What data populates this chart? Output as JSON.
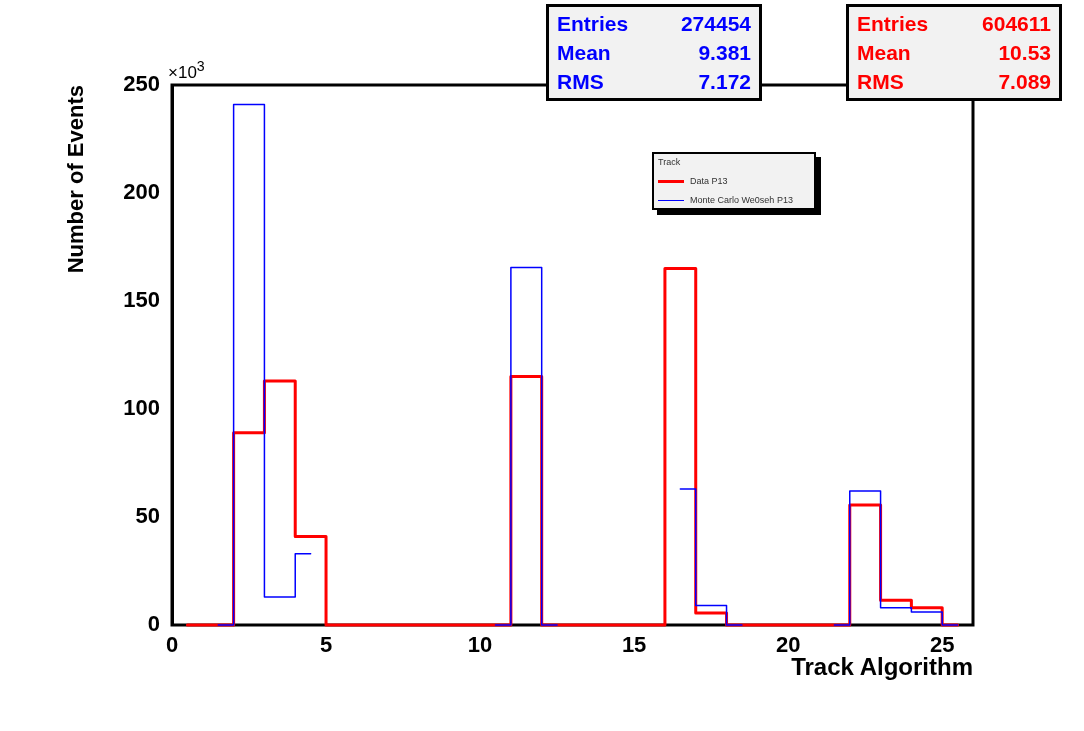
{
  "chart_data": {
    "type": "step",
    "marker": "none",
    "line_style": "solid",
    "xlabel": "Track Algorithm",
    "ylabel": "Number of Events",
    "x": [
      0.5,
      1.5,
      2.5,
      3.5,
      4.5,
      5.5,
      6.5,
      7.5,
      8.5,
      9.5,
      10.5,
      11.5,
      12.5,
      13.5,
      14.5,
      15.5,
      16.5,
      17.5,
      18.5,
      19.5,
      20.5,
      21.5,
      22.5,
      23.5,
      24.5,
      25.5
    ],
    "series": [
      {
        "name": "Data P13",
        "color": "#ff0000",
        "values": [
          0,
          0,
          89,
          113,
          41,
          0,
          0,
          0,
          0,
          0,
          0,
          115,
          0,
          0,
          0,
          0,
          165,
          5.6,
          0,
          0,
          0,
          0,
          55.5,
          11.5,
          8,
          0
        ]
      },
      {
        "name": "Monte Carlo We0seh P13",
        "color": "#0000ff",
        "values": [
          null,
          0,
          241,
          13,
          33,
          null,
          null,
          null,
          null,
          null,
          0,
          165.5,
          0,
          null,
          null,
          null,
          63,
          9,
          0,
          null,
          null,
          0,
          62,
          8,
          6,
          0
        ]
      }
    ],
    "xlim": [
      0,
      26
    ],
    "xticks": [
      0,
      5,
      10,
      15,
      20,
      25
    ],
    "ylim": [
      0,
      250
    ],
    "yticks": [
      0,
      50,
      100,
      150,
      200,
      250
    ],
    "grid": false,
    "legend": "top right",
    "legend_title": "Track",
    "annotations": [
      "×10$^{3}$",
      "Entries",
      "274454",
      "Mean",
      "9.381",
      "RMS",
      "7.172",
      "Entries",
      "604611",
      "Mean",
      "10.53",
      "RMS",
      "7.089"
    ]
  }
}
